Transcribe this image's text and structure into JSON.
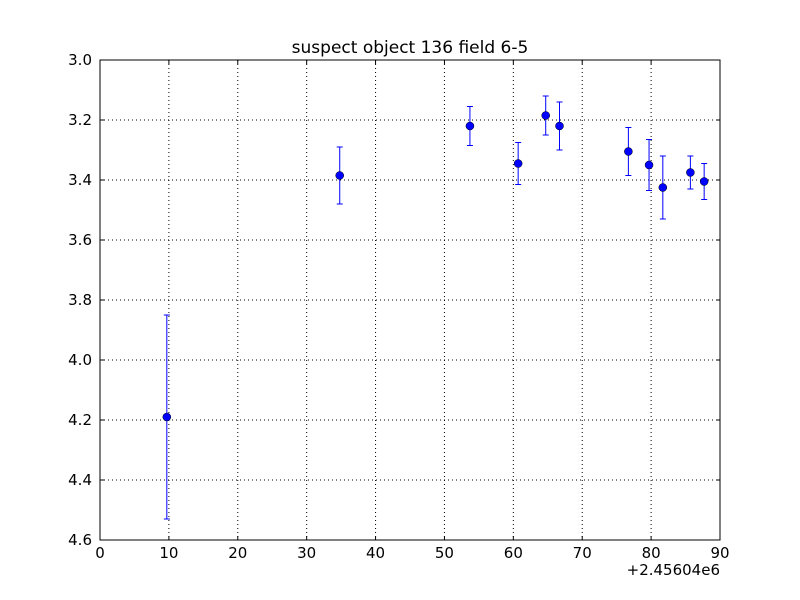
{
  "chart_data": {
    "type": "scatter",
    "title": "suspect object 136 field 6-5",
    "xlabel": "",
    "ylabel": "",
    "x_offset_label": "+2.45604e6",
    "xlim": [
      0,
      90
    ],
    "ylim": [
      3.0,
      4.6
    ],
    "y_inverted": true,
    "grid": true,
    "x_ticks": [
      0,
      10,
      20,
      30,
      40,
      50,
      60,
      70,
      80,
      90
    ],
    "y_ticks": [
      3.0,
      3.2,
      3.4,
      3.6,
      3.8,
      4.0,
      4.2,
      4.4,
      4.6
    ],
    "x_tick_labels": [
      "0",
      "10",
      "20",
      "30",
      "40",
      "50",
      "60",
      "70",
      "80",
      "90"
    ],
    "y_tick_labels": [
      "3.0",
      "3.2",
      "3.4",
      "3.6",
      "3.8",
      "4.0",
      "4.2",
      "4.4",
      "4.6"
    ],
    "marker_color": "#0000ff",
    "series": [
      {
        "points": [
          {
            "x": 9.7,
            "y": 4.19,
            "err": 0.34
          },
          {
            "x": 34.8,
            "y": 3.385,
            "err": 0.095
          },
          {
            "x": 53.7,
            "y": 3.22,
            "err": 0.065
          },
          {
            "x": 60.7,
            "y": 3.345,
            "err": 0.07
          },
          {
            "x": 64.7,
            "y": 3.185,
            "err": 0.065
          },
          {
            "x": 66.7,
            "y": 3.22,
            "err": 0.08
          },
          {
            "x": 76.7,
            "y": 3.305,
            "err": 0.08
          },
          {
            "x": 79.7,
            "y": 3.35,
            "err": 0.085
          },
          {
            "x": 81.7,
            "y": 3.425,
            "err": 0.105
          },
          {
            "x": 85.7,
            "y": 3.375,
            "err": 0.055
          },
          {
            "x": 87.7,
            "y": 3.405,
            "err": 0.06
          }
        ]
      }
    ]
  }
}
